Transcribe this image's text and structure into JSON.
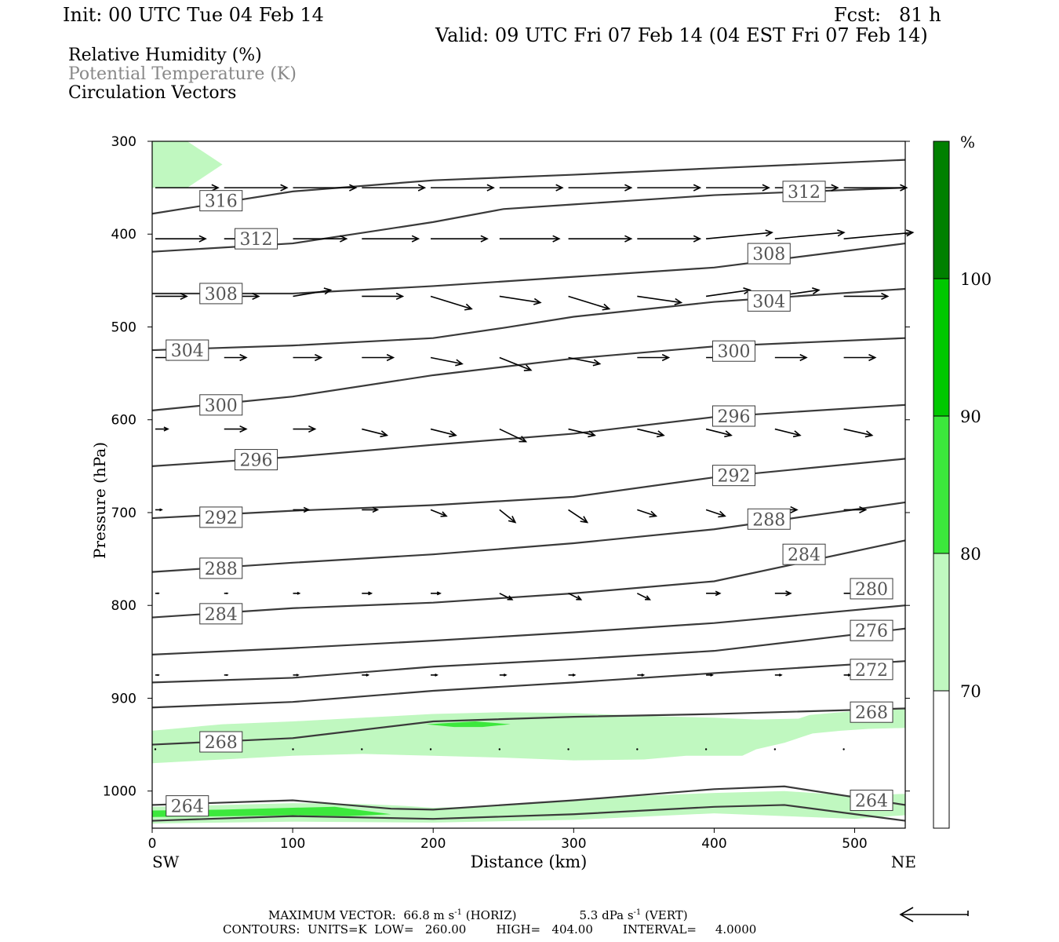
{
  "header": {
    "init": "Init: 00 UTC Tue 04 Feb 14",
    "fcst": "Fcst:   81 h",
    "valid": "Valid: 09 UTC Fri 07 Feb 14 (04 EST Fri 07 Feb 14)"
  },
  "fields": {
    "rh": "Relative Humidity (%)",
    "theta": "Potential Temperature (K)",
    "vectors": "Circulation Vectors"
  },
  "footer": {
    "vector_prefix": "MAXIMUM VECTOR:  66.8 m s",
    "vector_horiz": " (HORIZ)",
    "vector_vert_prefix": "5.3 dPa s",
    "vector_vert": " (VERT)",
    "exp": "-1",
    "contours": "CONTOURS:  UNITS=K  LOW=   260.00        HIGH=   404.00        INTERVAL=     4.0000"
  },
  "colors": {
    "rh70": "#c0f8c0",
    "rh80": "#3ce83c",
    "rh90": "#00c800",
    "rh100": "#008000",
    "contour": "#3a3a3a",
    "contour_text": "#555555",
    "theta_label": "#888888"
  },
  "chart_data": {
    "type": "cross-section",
    "xlabel": "Distance (km)",
    "ylabel": "Pressure (hPa)",
    "x_left_label": "SW",
    "x_right_label": "NE",
    "xlim": [
      0,
      536
    ],
    "ylim": [
      1040,
      300
    ],
    "xticks": [
      0,
      100,
      200,
      300,
      400,
      500
    ],
    "yticks": [
      300,
      400,
      500,
      600,
      700,
      800,
      900,
      1000
    ],
    "colorbar": {
      "unit": "%",
      "levels": [
        70,
        80,
        90,
        100
      ]
    },
    "theta_contours": [
      {
        "k": 316,
        "points": [
          [
            0,
            378
          ],
          [
            50,
            366
          ],
          [
            100,
            354
          ],
          [
            200,
            342
          ],
          [
            300,
            336
          ],
          [
            400,
            329
          ],
          [
            536,
            320
          ]
        ],
        "labels": [
          [
            49,
            364
          ]
        ]
      },
      {
        "k": 312,
        "points": [
          [
            0,
            419
          ],
          [
            100,
            410
          ],
          [
            200,
            387
          ],
          [
            250,
            373
          ],
          [
            300,
            368
          ],
          [
            400,
            358
          ],
          [
            536,
            350
          ]
        ],
        "labels": [
          [
            74,
            405
          ],
          [
            464,
            354
          ]
        ]
      },
      {
        "k": 308,
        "points": [
          [
            0,
            464
          ],
          [
            100,
            464
          ],
          [
            200,
            456
          ],
          [
            300,
            446
          ],
          [
            400,
            436
          ],
          [
            536,
            410
          ]
        ],
        "labels": [
          [
            49,
            464
          ],
          [
            439,
            421
          ]
        ]
      },
      {
        "k": 304,
        "points": [
          [
            0,
            525
          ],
          [
            100,
            520
          ],
          [
            200,
            512
          ],
          [
            250,
            501
          ],
          [
            300,
            489
          ],
          [
            400,
            473
          ],
          [
            536,
            459
          ]
        ],
        "labels": [
          [
            25,
            525
          ],
          [
            439,
            472
          ]
        ]
      },
      {
        "k": 300,
        "points": [
          [
            0,
            590
          ],
          [
            100,
            575
          ],
          [
            200,
            552
          ],
          [
            300,
            534
          ],
          [
            400,
            521
          ],
          [
            536,
            512
          ]
        ],
        "labels": [
          [
            49,
            584
          ],
          [
            414,
            526
          ]
        ]
      },
      {
        "k": 296,
        "points": [
          [
            0,
            650
          ],
          [
            100,
            640
          ],
          [
            200,
            627
          ],
          [
            300,
            615
          ],
          [
            400,
            597
          ],
          [
            536,
            584
          ]
        ],
        "labels": [
          [
            74,
            643
          ],
          [
            414,
            596
          ]
        ]
      },
      {
        "k": 292,
        "points": [
          [
            0,
            706
          ],
          [
            100,
            698
          ],
          [
            200,
            692
          ],
          [
            300,
            683
          ],
          [
            400,
            662
          ],
          [
            536,
            642
          ]
        ],
        "labels": [
          [
            49,
            705
          ],
          [
            414,
            660
          ]
        ]
      },
      {
        "k": 288,
        "points": [
          [
            0,
            764
          ],
          [
            100,
            754
          ],
          [
            200,
            745
          ],
          [
            300,
            733
          ],
          [
            400,
            718
          ],
          [
            536,
            689
          ]
        ],
        "labels": [
          [
            49,
            760
          ],
          [
            439,
            707
          ]
        ]
      },
      {
        "k": 284,
        "points": [
          [
            0,
            813
          ],
          [
            100,
            803
          ],
          [
            200,
            797
          ],
          [
            300,
            787
          ],
          [
            400,
            774
          ],
          [
            536,
            730
          ]
        ],
        "labels": [
          [
            49,
            809
          ],
          [
            464,
            745
          ]
        ]
      },
      {
        "k": 280,
        "points": [
          [
            0,
            853
          ],
          [
            100,
            846
          ],
          [
            200,
            838
          ],
          [
            300,
            829
          ],
          [
            400,
            819
          ],
          [
            536,
            800
          ]
        ],
        "labels": [
          [
            512,
            782
          ]
        ]
      },
      {
        "k": 276,
        "points": [
          [
            0,
            883
          ],
          [
            100,
            878
          ],
          [
            200,
            866
          ],
          [
            300,
            858
          ],
          [
            400,
            849
          ],
          [
            536,
            825
          ]
        ],
        "labels": [
          [
            512,
            827
          ]
        ]
      },
      {
        "k": 272,
        "points": [
          [
            0,
            910
          ],
          [
            100,
            904
          ],
          [
            200,
            892
          ],
          [
            300,
            883
          ],
          [
            400,
            873
          ],
          [
            536,
            860
          ]
        ],
        "labels": [
          [
            512,
            869
          ]
        ]
      },
      {
        "k": 268,
        "points": [
          [
            0,
            950
          ],
          [
            100,
            943
          ],
          [
            200,
            925
          ],
          [
            300,
            920
          ],
          [
            400,
            917
          ],
          [
            536,
            911
          ]
        ],
        "labels": [
          [
            49,
            947
          ],
          [
            512,
            915
          ]
        ]
      },
      {
        "k": 264,
        "points": [
          [
            0,
            1015
          ],
          [
            100,
            1010
          ],
          [
            170,
            1019
          ],
          [
            200,
            1020
          ],
          [
            300,
            1010
          ],
          [
            400,
            998
          ],
          [
            450,
            995
          ],
          [
            536,
            1015
          ]
        ],
        "labels": [
          [
            25,
            1016
          ],
          [
            512,
            1010
          ]
        ]
      },
      {
        "k": 260,
        "points": [
          [
            0,
            1032
          ],
          [
            100,
            1027
          ],
          [
            200,
            1030
          ],
          [
            300,
            1025
          ],
          [
            400,
            1017
          ],
          [
            450,
            1015
          ],
          [
            536,
            1032
          ]
        ],
        "labels": []
      }
    ],
    "rh_regions": [
      {
        "level": 70,
        "points": [
          [
            0,
            300
          ],
          [
            25,
            300
          ],
          [
            50,
            325
          ],
          [
            25,
            350
          ],
          [
            0,
            350
          ]
        ]
      },
      {
        "level": 70,
        "points": [
          [
            0,
            935
          ],
          [
            50,
            928
          ],
          [
            100,
            925
          ],
          [
            150,
            921
          ],
          [
            200,
            917
          ],
          [
            250,
            915
          ],
          [
            300,
            916
          ],
          [
            350,
            919
          ],
          [
            400,
            921
          ],
          [
            430,
            923
          ],
          [
            460,
            922
          ],
          [
            468,
            918
          ],
          [
            490,
            915
          ],
          [
            536,
            910
          ],
          [
            536,
            932
          ],
          [
            510,
            933
          ],
          [
            490,
            935
          ],
          [
            470,
            938
          ],
          [
            460,
            943
          ],
          [
            450,
            948
          ],
          [
            430,
            955
          ],
          [
            420,
            962
          ],
          [
            380,
            962
          ],
          [
            350,
            966
          ],
          [
            300,
            967
          ],
          [
            250,
            964
          ],
          [
            200,
            962
          ],
          [
            150,
            960
          ],
          [
            100,
            962
          ],
          [
            50,
            966
          ],
          [
            0,
            970
          ]
        ]
      },
      {
        "level": 80,
        "points": [
          [
            195,
            928
          ],
          [
            230,
            925
          ],
          [
            255,
            928
          ],
          [
            235,
            931
          ],
          [
            215,
            931
          ]
        ]
      },
      {
        "level": 70,
        "points": [
          [
            0,
            1017
          ],
          [
            50,
            1015
          ],
          [
            100,
            1013
          ],
          [
            150,
            1014
          ],
          [
            180,
            1016
          ],
          [
            200,
            1018
          ],
          [
            250,
            1016
          ],
          [
            300,
            1010
          ],
          [
            350,
            1005
          ],
          [
            400,
            1002
          ],
          [
            450,
            1000
          ],
          [
            500,
            1005
          ],
          [
            536,
            1003
          ],
          [
            536,
            1026
          ],
          [
            500,
            1030
          ],
          [
            450,
            1027
          ],
          [
            400,
            1024
          ],
          [
            300,
            1031
          ],
          [
            200,
            1034
          ],
          [
            100,
            1033
          ],
          [
            0,
            1035
          ]
        ]
      },
      {
        "level": 80,
        "points": [
          [
            0,
            1021
          ],
          [
            50,
            1020
          ],
          [
            100,
            1018
          ],
          [
            130,
            1017
          ],
          [
            150,
            1021
          ],
          [
            170,
            1025
          ],
          [
            140,
            1027
          ],
          [
            100,
            1026
          ],
          [
            60,
            1027
          ],
          [
            0,
            1028
          ]
        ]
      }
    ],
    "vector_rows": [
      {
        "p": 350,
        "u": [
          1,
          1,
          1,
          1,
          1,
          1,
          1,
          1,
          1,
          1,
          1
        ],
        "w": [
          0,
          0,
          0,
          0,
          0,
          0,
          0,
          0,
          0,
          0,
          0
        ]
      },
      {
        "p": 405,
        "u": [
          0.8,
          0.8,
          0.85,
          0.9,
          0.9,
          0.95,
          1,
          1,
          1.05,
          1.1,
          1.1
        ],
        "w": [
          0,
          0,
          0,
          0,
          0,
          0,
          0,
          0,
          -0.01,
          -0.01,
          -0.01
        ]
      },
      {
        "p": 467,
        "u": [
          0.5,
          0.55,
          0.6,
          0.65,
          0.65,
          0.65,
          0.65,
          0.7,
          0.7,
          0.7,
          0.7
        ],
        "w": [
          0,
          0,
          -0.01,
          0,
          0.02,
          0.01,
          0.02,
          0.01,
          -0.01,
          -0.01,
          0
        ]
      },
      {
        "p": 533,
        "u": [
          0.3,
          0.35,
          0.45,
          0.5,
          0.5,
          0.5,
          0.5,
          0.5,
          0.5,
          0.5,
          0.5
        ],
        "w": [
          0,
          0,
          0,
          0,
          0.01,
          0.02,
          0.01,
          0,
          0,
          0,
          0
        ]
      },
      {
        "p": 610,
        "u": [
          0.2,
          0.35,
          0.35,
          0.4,
          0.4,
          0.42,
          0.42,
          0.42,
          0.4,
          0.4,
          0.45
        ],
        "w": [
          0,
          0,
          0,
          0.01,
          0.01,
          0.02,
          0.01,
          0.01,
          0.01,
          0.01,
          0.01
        ]
      },
      {
        "p": 697,
        "u": [
          0.1,
          0.1,
          0.25,
          0.25,
          0.25,
          0.25,
          0.3,
          0.3,
          0.3,
          0.35,
          0.35
        ],
        "w": [
          0,
          0,
          0,
          0,
          0.01,
          0.02,
          0.02,
          0.01,
          0.01,
          0,
          0
        ]
      },
      {
        "p": 787,
        "u": [
          0.05,
          0.05,
          0.1,
          0.15,
          0.15,
          0.2,
          0.2,
          0.2,
          0.22,
          0.25,
          0.28
        ],
        "w": [
          0,
          0,
          0,
          0,
          0,
          0.01,
          0.01,
          0.01,
          0,
          0,
          0
        ]
      },
      {
        "p": 875,
        "u": [
          0.05,
          0.05,
          0.08,
          0.1,
          0.1,
          0.1,
          0.1,
          0.1,
          0.1,
          0.1,
          0.1
        ],
        "w": [
          0,
          0,
          0,
          0,
          0,
          0,
          0,
          0,
          0,
          0,
          0
        ]
      },
      {
        "p": 955,
        "u": [
          0,
          0,
          0,
          0,
          0,
          0,
          0,
          0,
          0,
          0,
          0
        ],
        "w": [
          0,
          0,
          0,
          0,
          0,
          0,
          0,
          0,
          0,
          0,
          0
        ]
      }
    ]
  }
}
